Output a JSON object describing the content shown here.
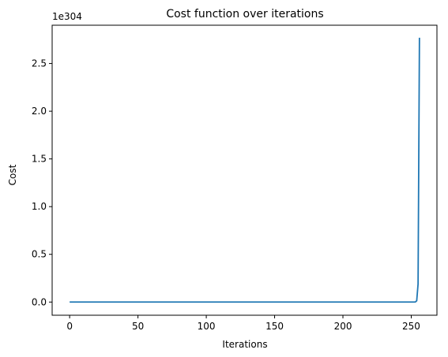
{
  "chart_data": {
    "type": "line",
    "title": "Cost function over iterations",
    "xlabel": "Iterations",
    "ylabel": "Cost",
    "y_offset_label": "1e304",
    "xlim": [
      -12.8,
      268.8
    ],
    "ylim": [
      -0.13815,
      2.9012
    ],
    "x_ticks": [
      0,
      50,
      100,
      150,
      200,
      250
    ],
    "x_tick_labels": [
      "0",
      "50",
      "100",
      "150",
      "200",
      "250"
    ],
    "y_ticks": [
      0.0,
      0.5,
      1.0,
      1.5,
      2.0,
      2.5
    ],
    "y_tick_labels": [
      "0.0",
      "0.5",
      "1.0",
      "1.5",
      "2.0",
      "2.5"
    ],
    "grid": false,
    "series": [
      {
        "color": "#1f77b4",
        "x": [
          0,
          50,
          100,
          150,
          200,
          250,
          252,
          253,
          254,
          255,
          256
        ],
        "y": [
          0,
          0,
          0,
          0,
          0,
          0,
          0.0001,
          0.001,
          0.013,
          0.19,
          2.77
        ]
      }
    ]
  }
}
